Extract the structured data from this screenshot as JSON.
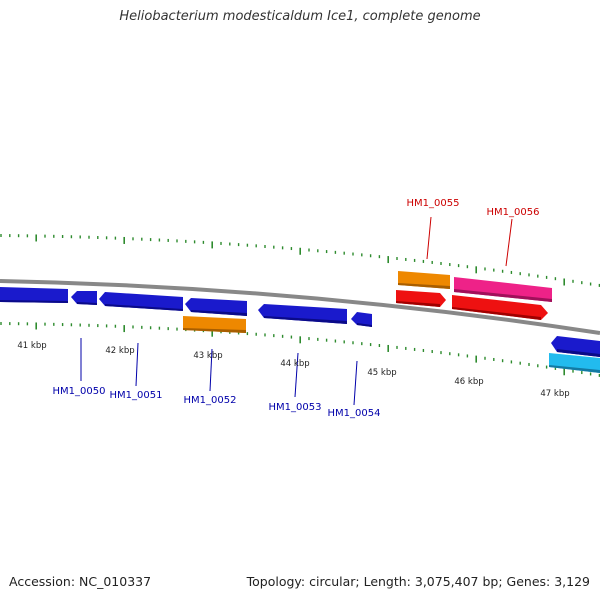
{
  "title": "Heliobacterium modesticaldum Ice1, complete genome",
  "accession_text": "Accession: NC_010337",
  "topology_text": "Topology: circular; Length: 3,075,407 bp; Genes: 3,129",
  "colors": {
    "backbone": "#888888",
    "tick": "#2e8b2e",
    "label_strand_minus": "#0000aa",
    "label_strand_plus": "#cc0000",
    "gene_blue": "#1a1acc",
    "gene_orange": "#ee8800",
    "gene_red": "#ee1111",
    "gene_pink": "#ee2288",
    "gene_cyan": "#22bbee"
  },
  "kbp_labels": [
    "41 kbp",
    "42 kbp",
    "43 kbp",
    "44 kbp",
    "45 kbp",
    "46 kbp",
    "47 kbp"
  ],
  "gene_labels": {
    "hm1_0050": "HM1_0050",
    "hm1_0051": "HM1_0051",
    "hm1_0052": "HM1_0052",
    "hm1_0053": "HM1_0053",
    "hm1_0054": "HM1_0054",
    "hm1_0055": "HM1_0055",
    "hm1_0056": "HM1_0056"
  }
}
